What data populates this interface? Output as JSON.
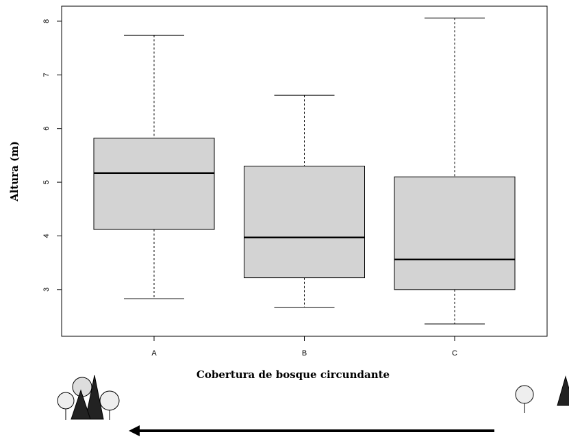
{
  "chart_data": {
    "type": "box",
    "xlabel": "Cobertura de bosque circundante",
    "ylabel": "Altura (m)",
    "categories": [
      "A",
      "B",
      "C"
    ],
    "boxes": [
      {
        "min": 2.83,
        "q1": 4.12,
        "median": 5.17,
        "q3": 5.82,
        "max": 7.74
      },
      {
        "min": 2.67,
        "q1": 3.22,
        "median": 3.97,
        "q3": 5.3,
        "max": 6.62
      },
      {
        "min": 2.36,
        "q1": 3.0,
        "median": 3.56,
        "q3": 5.1,
        "max": 8.06
      }
    ],
    "color": "#d3d3d3",
    "ylim": [
      2.13,
      8.28
    ],
    "yticks": [
      3,
      4,
      5,
      6,
      7,
      8
    ]
  }
}
